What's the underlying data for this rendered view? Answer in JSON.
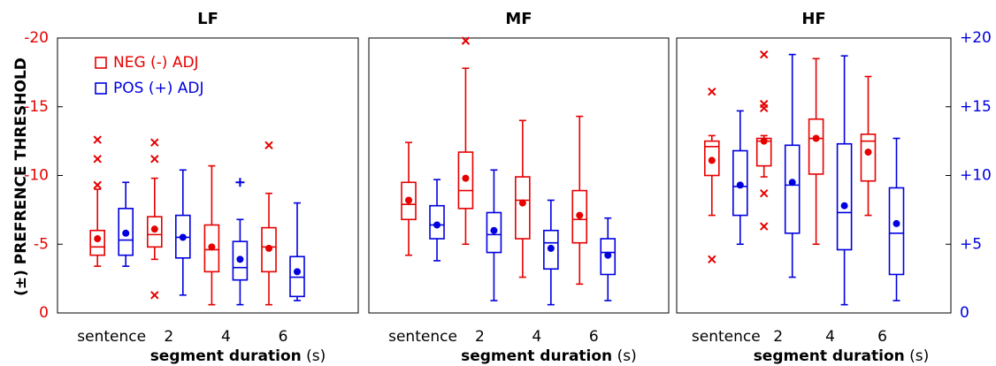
{
  "chart_data": [
    {
      "type": "box",
      "title": "LF",
      "categories": [
        "sentence",
        "2",
        "4",
        "6"
      ],
      "xlabel": "segment duration",
      "xlabel_units": "(s)",
      "ylabel": "(±) PREFRENCE THRESHOLD",
      "ylim": [
        0,
        -20
      ],
      "yticks": [
        0,
        -5,
        -10,
        -15,
        -20
      ],
      "y2lim": [
        0,
        20
      ],
      "series": [
        {
          "name": "NEG (-) ADJ",
          "color": "#e60000",
          "outlier_marker": "x",
          "whiskers": [
            [
              -3.4,
              -9.0
            ],
            [
              -3.9,
              -9.8
            ],
            [
              -0.6,
              -10.7
            ],
            [
              -0.6,
              -8.7
            ]
          ],
          "box": [
            [
              -4.2,
              -6.0
            ],
            [
              -4.8,
              -7.0
            ],
            [
              -3.0,
              -6.4
            ],
            [
              -3.0,
              -6.2
            ]
          ],
          "median": [
            -4.8,
            -5.7,
            -4.6,
            -4.8
          ],
          "mean": [
            -5.4,
            -6.1,
            -4.8,
            -4.7
          ],
          "outliers": [
            [
              -12.6,
              -11.2,
              -9.3
            ],
            [
              -12.4,
              -11.2,
              -1.3
            ],
            [],
            [
              -12.2
            ]
          ]
        },
        {
          "name": "POS (+) ADJ",
          "color": "#0000e0",
          "axis": "y2",
          "outlier_marker": "+",
          "whiskers": [
            [
              3.4,
              9.5
            ],
            [
              1.3,
              10.4
            ],
            [
              0.6,
              6.8
            ],
            [
              0.9,
              8.0
            ]
          ],
          "box": [
            [
              4.2,
              7.6
            ],
            [
              4.0,
              7.1
            ],
            [
              2.4,
              5.2
            ],
            [
              1.2,
              4.1
            ]
          ],
          "median": [
            5.3,
            5.5,
            3.3,
            2.6
          ],
          "mean": [
            5.8,
            5.5,
            3.9,
            3.0
          ],
          "outliers": [
            [],
            [],
            [
              9.5
            ],
            []
          ]
        }
      ]
    },
    {
      "type": "box",
      "title": "MF",
      "categories": [
        "sentence",
        "2",
        "4",
        "6"
      ],
      "xlabel": "segment duration",
      "xlabel_units": "(s)",
      "ylim": [
        0,
        -20
      ],
      "y2lim": [
        0,
        20
      ],
      "series": [
        {
          "color": "#e60000",
          "outlier_marker": "x",
          "whiskers": [
            [
              -4.2,
              -12.4
            ],
            [
              -5.0,
              -17.8
            ],
            [
              -2.6,
              -14.0
            ],
            [
              -2.1,
              -14.3
            ]
          ],
          "box": [
            [
              -6.8,
              -9.5
            ],
            [
              -7.6,
              -11.7
            ],
            [
              -5.4,
              -9.9
            ],
            [
              -5.1,
              -8.9
            ]
          ],
          "median": [
            -7.9,
            -8.9,
            -8.2,
            -6.8
          ],
          "mean": [
            -8.2,
            -9.8,
            -8.0,
            -7.1
          ],
          "outliers": [
            [],
            [
              -19.8
            ],
            [],
            []
          ]
        },
        {
          "color": "#0000e0",
          "axis": "y2",
          "outlier_marker": "+",
          "whiskers": [
            [
              3.8,
              9.7
            ],
            [
              0.9,
              10.4
            ],
            [
              0.6,
              8.2
            ],
            [
              0.9,
              6.9
            ]
          ],
          "box": [
            [
              5.4,
              7.8
            ],
            [
              4.4,
              7.3
            ],
            [
              3.2,
              6.0
            ],
            [
              2.8,
              5.4
            ]
          ],
          "median": [
            6.4,
            5.7,
            5.1,
            4.4
          ],
          "mean": [
            6.4,
            6.0,
            4.7,
            4.2
          ],
          "outliers": [
            [],
            [],
            [],
            []
          ]
        }
      ]
    },
    {
      "type": "box",
      "title": "HF",
      "categories": [
        "sentence",
        "2",
        "4",
        "6"
      ],
      "xlabel": "segment duration",
      "xlabel_units": "(s)",
      "ylim": [
        0,
        -20
      ],
      "y2lim": [
        0,
        20
      ],
      "y2ticks": [
        0,
        {
          "value": 5,
          "label": "+5"
        },
        {
          "value": 10,
          "label": "+10"
        },
        {
          "value": 15,
          "label": "+15"
        },
        {
          "value": 20,
          "label": "+20"
        }
      ],
      "series": [
        {
          "color": "#e60000",
          "outlier_marker": "x",
          "whiskers": [
            [
              -7.1,
              -12.9
            ],
            [
              -9.9,
              -12.9
            ],
            [
              -5.0,
              -18.5
            ],
            [
              -7.1,
              -17.2
            ]
          ],
          "box": [
            [
              -10.0,
              -12.5
            ],
            [
              -10.7,
              -12.7
            ],
            [
              -10.1,
              -14.1
            ],
            [
              -9.6,
              -13.0
            ]
          ],
          "median": [
            -12.1,
            -12.5,
            -12.7,
            -12.5
          ],
          "mean": [
            -11.1,
            -12.5,
            -12.7,
            -11.7
          ],
          "outliers": [
            [
              -16.1,
              -3.9
            ],
            [
              -18.8,
              -15.2,
              -14.9,
              -8.7,
              -6.3
            ],
            [],
            []
          ]
        },
        {
          "color": "#0000e0",
          "axis": "y2",
          "outlier_marker": "+",
          "whiskers": [
            [
              5.0,
              14.7
            ],
            [
              2.6,
              18.8
            ],
            [
              0.6,
              18.7
            ],
            [
              0.9,
              12.7
            ]
          ],
          "box": [
            [
              7.1,
              11.8
            ],
            [
              5.8,
              12.2
            ],
            [
              4.6,
              12.3
            ],
            [
              2.8,
              9.1
            ]
          ],
          "median": [
            9.2,
            9.3,
            7.3,
            5.8
          ],
          "mean": [
            9.3,
            9.5,
            7.8,
            6.5
          ],
          "outliers": [
            [],
            [],
            [],
            []
          ]
        }
      ]
    }
  ]
}
